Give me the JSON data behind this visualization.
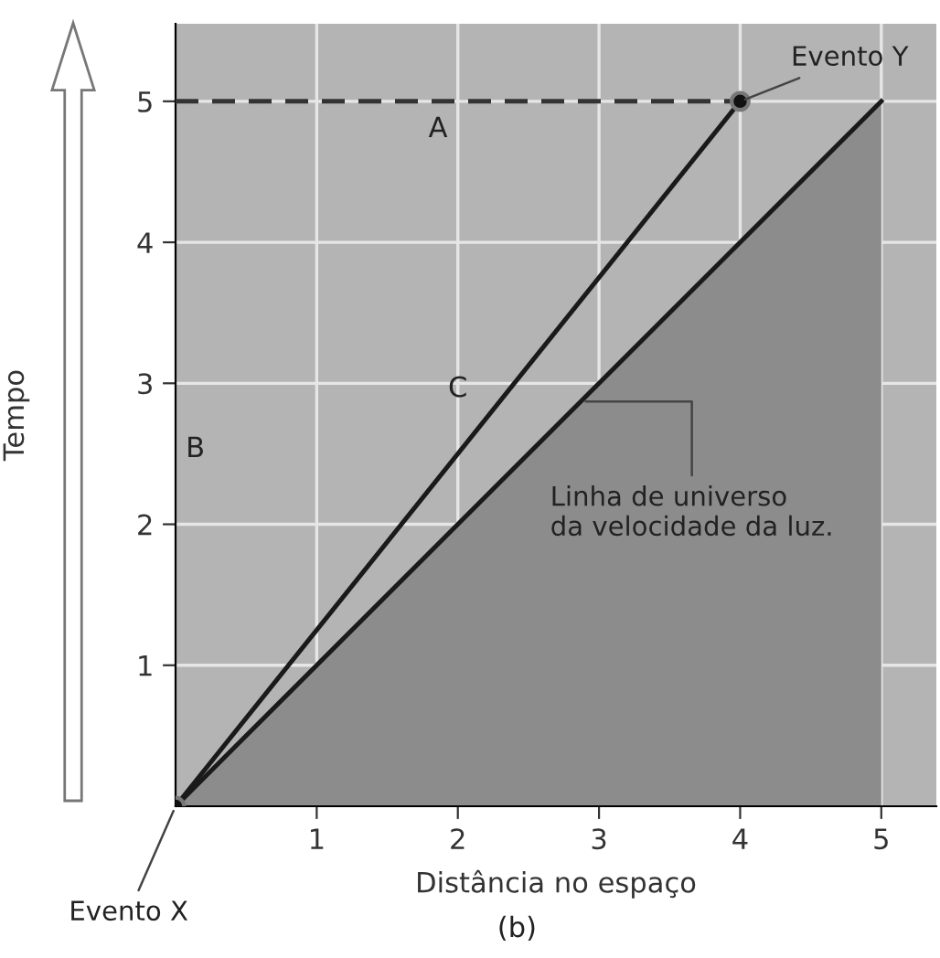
{
  "chart_data": {
    "type": "line",
    "xlabel": "Distância no espaço",
    "ylabel": "Tempo",
    "xlim": [
      0,
      5.39
    ],
    "ylim": [
      0,
      5.55
    ],
    "xticks": [
      1,
      2,
      3,
      4,
      5
    ],
    "yticks": [
      1,
      2,
      3,
      4,
      5
    ],
    "grid": true,
    "line_style": "solid",
    "series": [
      {
        "type": "area",
        "color": "#8c8c8c",
        "x": [
          0,
          5
        ],
        "values": [
          0,
          5
        ]
      },
      {
        "color": "#1a1a1a",
        "x": [
          0,
          4
        ],
        "values": [
          0,
          5
        ]
      },
      {
        "color": "#333333",
        "line_style": "dashed",
        "x": [
          0,
          4
        ],
        "values": [
          5,
          5
        ]
      },
      {
        "type": "scatter",
        "color": "#111111",
        "marker": "circle",
        "x": [
          0,
          4
        ],
        "values": [
          0,
          5
        ]
      }
    ],
    "annotations": [
      "A",
      "B",
      "C",
      {
        "text": "Evento X",
        "x": 0,
        "y": 0
      },
      {
        "text": "Evento Y",
        "x": 4,
        "y": 5
      },
      {
        "text": "Linha de universo\nda velocidade da luz.",
        "x": 2.87,
        "y": 2.87
      },
      "(b)"
    ]
  }
}
